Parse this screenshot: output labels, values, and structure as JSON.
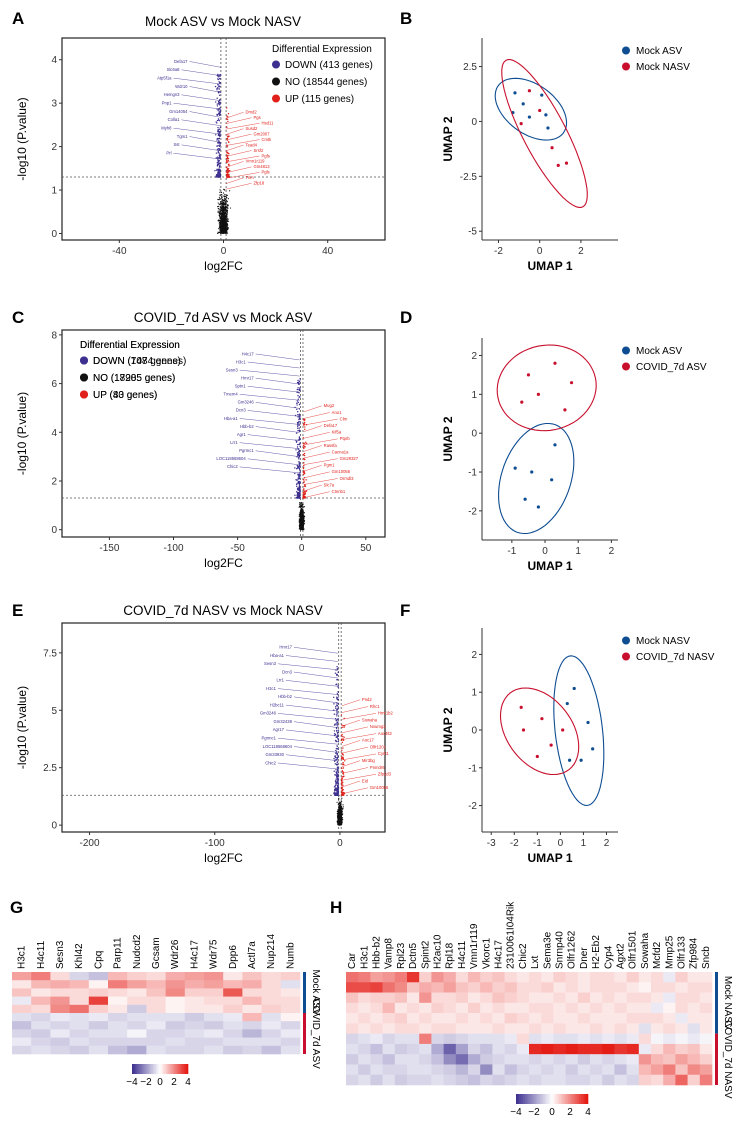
{
  "chart_data": [
    {
      "panel": "A",
      "type": "scatter",
      "variant": "volcano",
      "title": "Mock ASV vs Mock NASV",
      "xlabel": "log2FC",
      "ylabel": "-log10 (P.value)",
      "xlim": [
        -62,
        62
      ],
      "ylim": [
        -0.15,
        4.5
      ],
      "xticks": [
        -40,
        0,
        40
      ],
      "yticks": [
        0,
        1,
        2,
        3,
        4
      ],
      "threshold_y": 1.3,
      "threshold_x": [
        -1,
        1
      ],
      "legend": {
        "title": "Differential Expression",
        "position": "top-right",
        "entries": [
          {
            "label": "DOWN (413 genes)",
            "color": "#3d2f8f"
          },
          {
            "label": "NO (18544 genes)",
            "color": "#111111"
          },
          {
            "label": "UP (115 genes)",
            "color": "#e0201b"
          }
        ]
      },
      "labeled_genes": {
        "down": [
          "Defa17",
          "Slc6a8",
          "Atp5f1a",
          "Wdr10",
          "Hemgn3",
          "Pnp1",
          "Gm14054",
          "Colla1",
          "Myh8",
          "Tgm1",
          "Sst",
          "Prl"
        ],
        "up": [
          "Dmd2",
          "Pgs",
          "Hsd11",
          "Susd2",
          "Gm2007",
          "Cmtk",
          "Tead4",
          "Srsf2",
          "Pgfs",
          "Vmn1r119",
          "Gm4813",
          "Pgls",
          "Trim",
          "Zfp18"
        ]
      }
    },
    {
      "panel": "B",
      "type": "scatter",
      "variant": "umap",
      "xlabel": "UMAP 1",
      "ylabel": "UMAP 2",
      "xlim": [
        -2.8,
        3.8
      ],
      "ylim": [
        -5.4,
        3.8
      ],
      "xticks": [
        -2,
        0,
        2
      ],
      "yticks": [
        -5,
        -2.5,
        0,
        2.5
      ],
      "legend": {
        "position": "top-right",
        "entries": [
          {
            "label": "Mock ASV",
            "color": "#0e4d92"
          },
          {
            "label": "Mock NASV",
            "color": "#c8102e"
          }
        ]
      },
      "series": [
        {
          "name": "Mock ASV",
          "points": [
            [
              -1.3,
              0.4
            ],
            [
              -1.2,
              1.3
            ],
            [
              -0.8,
              0.8
            ],
            [
              -0.5,
              0.2
            ],
            [
              0.1,
              1.2
            ],
            [
              0.3,
              0.3
            ],
            [
              0.4,
              -0.3
            ]
          ]
        },
        {
          "name": "Mock NASV",
          "points": [
            [
              -0.9,
              -0.1
            ],
            [
              -0.5,
              1.4
            ],
            [
              0.6,
              -1.2
            ],
            [
              0.9,
              -2.0
            ],
            [
              1.3,
              -1.9
            ],
            [
              0.0,
              0.5
            ]
          ]
        }
      ]
    },
    {
      "panel": "C",
      "type": "scatter",
      "variant": "volcano",
      "title": "COVID_7d ASV vs Mock ASV",
      "xlabel": "log2FC",
      "ylabel": "-log10 (P.value)",
      "xlim": [
        -187,
        65
      ],
      "ylim": [
        -0.3,
        8.2
      ],
      "xticks": [
        -150,
        -100,
        -50,
        0,
        50
      ],
      "yticks": [
        0,
        2,
        4,
        6,
        8
      ],
      "threshold_y": 1.3,
      "threshold_x": [
        -1,
        1
      ],
      "legend": {
        "title": "Differential Expression",
        "position": "top-left",
        "entries": [
          {
            "label": "DOWN (1084 genes)",
            "color": "#3d2f8f"
          },
          {
            "label": "NO (17905 genes)",
            "color": "#111111"
          },
          {
            "label": "UP (83 genes)",
            "color": "#e0201b"
          }
        ]
      },
      "labeled_genes": {
        "down": [
          "H4c17",
          "H3c1",
          "Sesn3",
          "Hmr17",
          "Sptn1",
          "Tmem4",
          "Gm3246",
          "Dcn3",
          "Hba-a1",
          "Hbb-b2",
          "Agr1",
          "Lrr1",
          "Pgrmc1",
          "LOC118568604",
          "Chic2"
        ],
        "up": [
          "Mug2",
          "Ano1",
          "Clrn",
          "Defa17",
          "Kif5a",
          "Ptprb",
          "Rassfa",
          "Cacna1a",
          "Gm29327",
          "Pgm1",
          "Gm10056",
          "Ormdl3",
          "Slc7a",
          "Ctnnb1"
        ]
      }
    },
    {
      "panel": "D",
      "type": "scatter",
      "variant": "umap",
      "xlabel": "UMAP 1",
      "ylabel": "UMAP 2",
      "xlim": [
        -1.9,
        2.2
      ],
      "ylim": [
        -2.75,
        2.45
      ],
      "xticks": [
        -1,
        0,
        1,
        2
      ],
      "yticks": [
        -2,
        -1,
        0,
        1,
        2
      ],
      "legend": {
        "position": "top-right",
        "entries": [
          {
            "label": "Mock ASV",
            "color": "#0e4d92"
          },
          {
            "label": "COVID_7d ASV",
            "color": "#c8102e"
          }
        ]
      },
      "series": [
        {
          "name": "Mock ASV",
          "points": [
            [
              -0.9,
              -0.9
            ],
            [
              -0.6,
              -1.7
            ],
            [
              -0.4,
              -1.0
            ],
            [
              -0.2,
              -1.9
            ],
            [
              0.2,
              -1.2
            ],
            [
              0.3,
              -0.3
            ]
          ]
        },
        {
          "name": "COVID_7d ASV",
          "points": [
            [
              -0.5,
              1.5
            ],
            [
              -0.2,
              1.0
            ],
            [
              0.3,
              1.8
            ],
            [
              0.6,
              0.6
            ],
            [
              0.8,
              1.3
            ],
            [
              -0.7,
              0.8
            ]
          ]
        }
      ]
    },
    {
      "panel": "E",
      "type": "scatter",
      "variant": "volcano",
      "title": "COVID_7d NASV vs Mock NASV",
      "xlabel": "log2FC",
      "ylabel": "-log10 (P.value)",
      "xlim": [
        -222,
        36
      ],
      "ylim": [
        -0.3,
        8.8
      ],
      "xticks": [
        -200,
        -100,
        0
      ],
      "yticks": [
        0,
        2.5,
        5.0,
        7.5
      ],
      "threshold_y": 1.3,
      "threshold_x": [
        -1,
        1
      ],
      "legend": {
        "title": "Differential Expression",
        "position": "top-left",
        "entries": [
          {
            "label": "DOWN (747 genes)",
            "color": "#3d2f8f"
          },
          {
            "label": "NO (18285 genes)",
            "color": "#111111"
          },
          {
            "label": "UP (40 genes)",
            "color": "#e0201b"
          }
        ]
      },
      "labeled_genes": {
        "down": [
          "Hmr17",
          "Hba-a1",
          "Sesn3",
          "Dcn3",
          "Lrr1",
          "H3c1",
          "Hbb-b2",
          "H2bc11",
          "Gm3246",
          "Gm32438",
          "Agr17",
          "Pgrmc1",
          "LOC118568604",
          "Gm33930",
          "Chic2"
        ],
        "up": [
          "Pnd2",
          "Rhc1",
          "Hmr1b2",
          "Sowaha",
          "Nxumg3",
          "Aox4lt2",
          "Aoc17",
          "Olfr1201",
          "Cyrlt1",
          "Mir3bg",
          "Pnmdr6",
          "Zfp2d3",
          "Eid",
          "Gm10056"
        ]
      }
    },
    {
      "panel": "F",
      "type": "scatter",
      "variant": "umap",
      "xlabel": "UMAP 1",
      "ylabel": "UMAP 2",
      "xlim": [
        -3.4,
        2.5
      ],
      "ylim": [
        -2.7,
        2.7
      ],
      "xticks": [
        -3,
        -2,
        -1,
        0,
        1,
        2
      ],
      "yticks": [
        -2,
        -1,
        0,
        1,
        2
      ],
      "legend": {
        "position": "top-right",
        "entries": [
          {
            "label": "Mock NASV",
            "color": "#0e4d92"
          },
          {
            "label": "COVID_7d NASV",
            "color": "#c8102e"
          }
        ]
      },
      "series": [
        {
          "name": "Mock NASV",
          "points": [
            [
              0.3,
              0.7
            ],
            [
              0.6,
              1.1
            ],
            [
              0.9,
              -0.8
            ],
            [
              1.2,
              0.2
            ],
            [
              1.4,
              -0.5
            ],
            [
              0.4,
              -0.8
            ]
          ]
        },
        {
          "name": "COVID_7d NASV",
          "points": [
            [
              -1.7,
              0.6
            ],
            [
              -1.6,
              0.0
            ],
            [
              -1.0,
              -0.7
            ],
            [
              -0.8,
              0.3
            ],
            [
              -0.4,
              -0.4
            ],
            [
              0.1,
              0.0
            ]
          ]
        }
      ]
    },
    {
      "panel": "G",
      "type": "heatmap",
      "columns": [
        "H3c1",
        "H4c11",
        "Sesn3",
        "Khl42",
        "Cpq",
        "Parp11",
        "Nudcd2",
        "Gcsam",
        "Wdr26",
        "H4c17",
        "Wdr75",
        "Dpp6",
        "Actl7a",
        "Nup214",
        "Numb"
      ],
      "row_groups": [
        {
          "label": "Mock ASV",
          "color": "#0e4d92"
        },
        {
          "label": "COVID_7d ASV",
          "color": "#c8102e"
        }
      ],
      "color_scale": {
        "min": -4,
        "max": 4,
        "ticks": [
          -4,
          -2,
          0,
          2,
          4
        ],
        "low": "#3a2d8f",
        "mid": "#ffffff",
        "high": "#e3120b"
      },
      "values": [
        [
          1.6,
          2.2,
          0.6,
          -0.8,
          -1.2,
          1.2,
          0.8,
          0.6,
          1.4,
          1.6,
          1.8,
          0.4,
          1.0,
          0.6,
          0.8
        ],
        [
          0.4,
          1.2,
          1.4,
          1.2,
          0.2,
          2.2,
          1.6,
          1.2,
          1.8,
          1.4,
          1.6,
          1.2,
          1.4,
          0.6,
          -0.6
        ],
        [
          1.0,
          0.4,
          0.6,
          0.6,
          0.8,
          0.6,
          0.4,
          1.0,
          2.0,
          0.8,
          0.8,
          2.8,
          0.6,
          0.6,
          0.4
        ],
        [
          -0.4,
          1.2,
          1.8,
          0.6,
          3.2,
          0.2,
          0.6,
          0.6,
          0.2,
          0.4,
          0.6,
          0.6,
          1.2,
          0.6,
          0.6
        ],
        [
          0.8,
          0.6,
          2.0,
          2.4,
          0.8,
          0.4,
          -1.0,
          0.6,
          0.2,
          0.4,
          0.4,
          0.8,
          0.4,
          0.8,
          0.6
        ],
        [
          -0.6,
          -0.8,
          -0.4,
          -0.6,
          -0.4,
          -0.8,
          -0.6,
          -0.6,
          -0.6,
          -1.0,
          -0.6,
          -0.4,
          1.2,
          -0.6,
          0.2
        ],
        [
          -1.2,
          -0.6,
          -0.8,
          -0.6,
          -1.0,
          -0.6,
          -0.8,
          -0.4,
          -1.0,
          -0.8,
          -1.0,
          -0.6,
          -0.8,
          -0.4,
          -0.8
        ],
        [
          -0.8,
          -1.0,
          -0.4,
          -0.8,
          -0.6,
          -0.6,
          -0.2,
          -0.8,
          -0.8,
          -0.6,
          -0.4,
          -0.8,
          -1.4,
          -0.8,
          -0.4
        ],
        [
          -0.4,
          -0.8,
          -1.0,
          -0.6,
          -0.8,
          -0.8,
          -0.8,
          -0.8,
          -0.6,
          -0.8,
          -0.8,
          -0.6,
          -0.6,
          -0.6,
          -0.8
        ],
        [
          -0.8,
          -0.6,
          -0.8,
          -1.0,
          -0.6,
          -1.2,
          -1.6,
          -0.6,
          -0.8,
          -0.8,
          -0.6,
          -1.0,
          -0.8,
          -1.2,
          -0.6
        ]
      ]
    },
    {
      "panel": "H",
      "type": "heatmap",
      "columns": [
        "Car",
        "H3c1",
        "Hbb-b2",
        "Vamp8",
        "Rpl23",
        "Dctn5",
        "Spint2",
        "H2ac10",
        "Rpl18",
        "H4c11",
        "Vmn1r119",
        "Vkorc1",
        "H4c17",
        "2310061I04Rik",
        "Chic2",
        "Lxt",
        "Sema3e",
        "Snrnp40",
        "Olfr1262",
        "Dner",
        "H2-Eb2",
        "Cyp4",
        "Agxt2",
        "Olfr1501",
        "Sowaha",
        "Mcfd2",
        "Mmp25",
        "Olfr133",
        "Zfp984",
        "Sncb"
      ],
      "row_groups": [
        {
          "label": "Mock NASV",
          "color": "#0e4d92"
        },
        {
          "label": "COVID_7d NASV",
          "color": "#c8102e"
        }
      ],
      "color_scale": {
        "min": -4,
        "max": 4,
        "ticks": [
          -4,
          -2,
          0,
          2,
          4
        ],
        "low": "#3a2d8f",
        "mid": "#ffffff",
        "high": "#e3120b"
      },
      "values": [
        [
          2.4,
          2.2,
          1.6,
          1.8,
          2.2,
          3.4,
          0.8,
          1.8,
          1.4,
          0.6,
          1.2,
          0.8,
          1.0,
          0.6,
          0.4,
          0.6,
          0.4,
          0.8,
          0.6,
          0.4,
          0.6,
          0.6,
          0.4,
          0.8,
          0.4,
          0.6,
          -0.4,
          0.8,
          0.4,
          0.4
        ],
        [
          3.0,
          3.0,
          3.2,
          2.4,
          2.0,
          1.0,
          1.4,
          1.2,
          1.6,
          1.0,
          0.8,
          1.2,
          0.8,
          1.0,
          0.6,
          0.6,
          0.8,
          0.4,
          0.6,
          0.4,
          0.6,
          0.6,
          0.6,
          0.4,
          0.2,
          0.6,
          0.6,
          0.4,
          0.6,
          0.6
        ],
        [
          1.0,
          0.6,
          0.8,
          0.8,
          1.0,
          0.4,
          1.8,
          0.6,
          0.6,
          0.8,
          0.4,
          0.6,
          1.0,
          0.8,
          0.6,
          0.4,
          0.4,
          0.6,
          0.4,
          0.8,
          0.4,
          0.6,
          0.4,
          0.6,
          0.6,
          0.4,
          -0.4,
          0.6,
          0.6,
          0.4
        ],
        [
          0.6,
          0.4,
          0.6,
          1.2,
          0.4,
          0.6,
          0.4,
          0.8,
          0.6,
          0.4,
          0.8,
          0.4,
          0.6,
          0.4,
          0.4,
          0.6,
          0.6,
          0.4,
          0.6,
          0.4,
          0.6,
          0.4,
          0.6,
          0.4,
          0.4,
          -0.4,
          0.2,
          0.6,
          0.4,
          0.6
        ],
        [
          0.4,
          0.6,
          0.4,
          0.6,
          0.8,
          0.4,
          0.6,
          0.4,
          0.4,
          0.6,
          0.4,
          0.6,
          0.4,
          0.8,
          0.6,
          0.4,
          0.6,
          0.4,
          0.4,
          0.6,
          0.4,
          0.4,
          0.4,
          0.6,
          0.6,
          0.6,
          0.4,
          -0.4,
          0.4,
          0.4
        ],
        [
          0.6,
          0.4,
          0.6,
          0.4,
          0.6,
          0.6,
          0.4,
          0.6,
          0.6,
          0.4,
          0.4,
          0.4,
          0.6,
          0.4,
          0.4,
          0.6,
          0.4,
          0.6,
          0.4,
          0.4,
          0.6,
          0.4,
          0.6,
          0.4,
          -0.6,
          0.4,
          0.6,
          0.4,
          -0.6,
          0.4
        ],
        [
          -0.8,
          -0.6,
          -0.4,
          -0.8,
          -0.6,
          -0.6,
          2.2,
          -0.8,
          -1.0,
          -0.8,
          -0.6,
          -0.6,
          -0.6,
          -0.4,
          0.6,
          -0.6,
          -0.4,
          -0.6,
          -0.6,
          -0.4,
          -0.6,
          -0.4,
          -0.6,
          -0.4,
          0.6,
          -0.2,
          -0.4,
          -0.2,
          -0.4,
          -0.2
        ],
        [
          -0.6,
          -0.8,
          -1.2,
          -0.6,
          -1.0,
          -0.8,
          -0.6,
          -1.6,
          -3.0,
          -1.8,
          -0.8,
          -1.2,
          -0.6,
          -0.8,
          -0.4,
          3.6,
          3.8,
          3.6,
          3.8,
          3.6,
          3.6,
          3.8,
          3.4,
          3.6,
          -0.4,
          0.6,
          1.2,
          0.8,
          1.0,
          0.4
        ],
        [
          -1.0,
          -0.6,
          -0.8,
          -1.2,
          -0.6,
          -0.6,
          -0.8,
          -1.2,
          -2.2,
          -2.8,
          -1.6,
          -1.0,
          -0.8,
          -0.6,
          -0.6,
          -0.8,
          -0.6,
          -0.8,
          -0.6,
          -1.0,
          -0.6,
          -0.8,
          -0.6,
          -0.4,
          1.8,
          1.2,
          1.0,
          1.6,
          1.2,
          0.8
        ],
        [
          -0.6,
          -1.0,
          -0.6,
          -0.8,
          -0.8,
          -0.6,
          -0.6,
          -0.8,
          -1.0,
          -1.4,
          -0.8,
          -2.2,
          -0.6,
          -1.2,
          -0.8,
          -0.6,
          -0.8,
          -0.6,
          -1.0,
          -0.6,
          -0.8,
          -0.6,
          -1.2,
          -0.6,
          1.2,
          1.6,
          2.2,
          1.0,
          2.0,
          1.6
        ],
        [
          -0.8,
          -0.6,
          -1.0,
          -0.6,
          -1.0,
          -0.8,
          -0.8,
          -0.6,
          -0.8,
          -1.0,
          -1.2,
          -0.8,
          -1.0,
          -0.8,
          -0.6,
          -0.8,
          -0.6,
          -0.6,
          -0.8,
          -0.8,
          -0.6,
          -1.0,
          -0.6,
          -0.8,
          0.8,
          0.6,
          1.4,
          2.6,
          0.8,
          2.2
        ]
      ]
    }
  ]
}
